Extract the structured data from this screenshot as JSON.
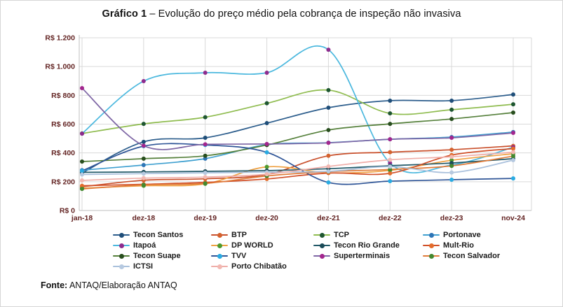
{
  "title": {
    "prefix": "Gráfico 1",
    "rest": " – Evolução do preço médio pela cobrança de inspeção não invasiva"
  },
  "footer": {
    "label": "Fonte:",
    "text": " ANTAQ/Elaboração ANTAQ"
  },
  "chart_data": {
    "type": "line",
    "title": "Gráfico 1 – Evolução do preço médio pela cobrança de inspeção não invasiva",
    "x": [
      "jan-18",
      "dez-18",
      "dez-19",
      "dez-20",
      "dez-21",
      "dez-22",
      "dez-23",
      "nov-24"
    ],
    "y_ticks": [
      "R$ 0",
      "R$ 200",
      "R$ 400",
      "R$ 600",
      "R$ 800",
      "R$ 1.000",
      "R$ 1.200"
    ],
    "ylim": [
      0,
      1200
    ],
    "grid": true,
    "legend_position": "bottom",
    "axis_label_color": "#632423",
    "gridline_color": "#d9d9d9",
    "axis_line_color": "#bfbfbf",
    "currency_unit": "R$",
    "series": [
      {
        "name": "Tecon Santos",
        "line_color": "#2c5d8c",
        "marker_color": "#1f4e79",
        "values": [
          260,
          477,
          505,
          607,
          714,
          763,
          763,
          806
        ]
      },
      {
        "name": "BTP",
        "line_color": "#c9502c",
        "marker_color": "#d4622e",
        "values": [
          165,
          210,
          220,
          250,
          380,
          405,
          422,
          449
        ]
      },
      {
        "name": "TCP",
        "line_color": "#8fbc4f",
        "marker_color": "#1e5631",
        "values": [
          535,
          602,
          648,
          745,
          836,
          675,
          700,
          738
        ]
      },
      {
        "name": "Portonave",
        "line_color": "#3fa0d0",
        "marker_color": "#2e75b6",
        "values": [
          280,
          316,
          360,
          457,
          471,
          495,
          510,
          545
        ]
      },
      {
        "name": "Itapoá",
        "line_color": "#4bb8de",
        "marker_color": "#8e2c8e",
        "values": [
          534,
          899,
          957,
          957,
          1117,
          330,
          316,
          440
        ]
      },
      {
        "name": "DP WORLD",
        "line_color": "#efa143",
        "marker_color": "#4e9a2e",
        "values": [
          155,
          172,
          185,
          303,
          262,
          279,
          349,
          394
        ]
      },
      {
        "name": "Tecon Rio Grande",
        "line_color": "#215968",
        "marker_color": "#1b4a57",
        "values": [
          265,
          268,
          272,
          277,
          290,
          311,
          330,
          360
        ]
      },
      {
        "name": "Mult-Rio",
        "line_color": "#d14f28",
        "marker_color": "#e36c2c",
        "values": [
          172,
          182,
          195,
          219,
          260,
          258,
          385,
          430
        ]
      },
      {
        "name": "Tecon Suape",
        "line_color": "#55803b",
        "marker_color": "#284e1e",
        "values": [
          340,
          360,
          380,
          455,
          559,
          602,
          636,
          680
        ]
      },
      {
        "name": "TVV",
        "line_color": "#2f5597",
        "marker_color": "#29abe2",
        "values": [
          275,
          447,
          455,
          404,
          195,
          204,
          214,
          223
        ]
      },
      {
        "name": "Superterminais",
        "line_color": "#7e66a5",
        "marker_color": "#a3268e",
        "values": [
          850,
          450,
          460,
          462,
          470,
          495,
          505,
          539
        ]
      },
      {
        "name": "Tecon Salvador",
        "line_color": "#e07b39",
        "marker_color": "#44882f",
        "values": [
          150,
          178,
          188,
          240,
          270,
          285,
          310,
          378
        ]
      },
      {
        "name": "ICTSI",
        "line_color": "#a9c0dc",
        "marker_color": "#b6c9e0",
        "values": [
          250,
          256,
          262,
          266,
          272,
          305,
          264,
          350
        ]
      },
      {
        "name": "Porto Chibatão",
        "line_color": "#efada8",
        "marker_color": "#f2b8b2",
        "values": [
          209,
          225,
          232,
          252,
          306,
          352,
          373,
          405
        ]
      }
    ]
  }
}
